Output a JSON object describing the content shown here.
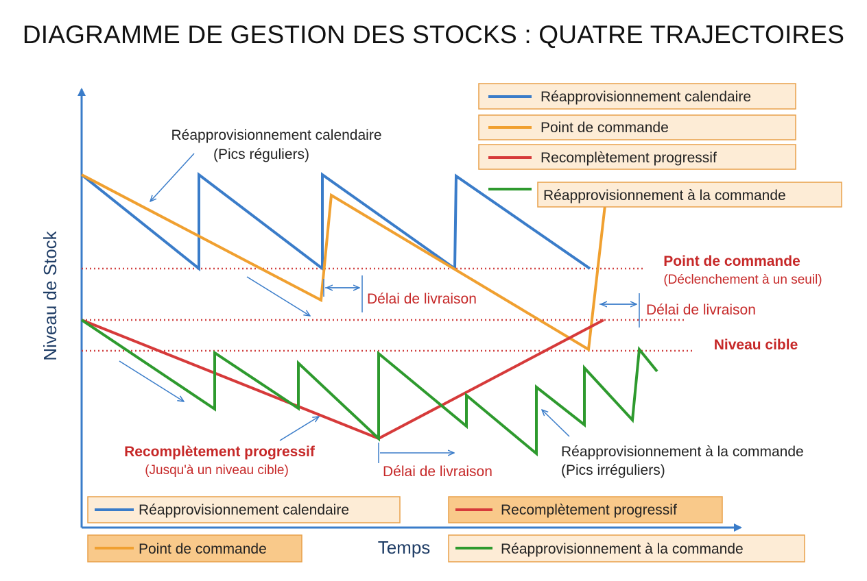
{
  "title": "DIAGRAMME DE GESTION DES STOCKS : QUATRE TRAJECTOIRES",
  "axes": {
    "y_label": "Niveau de Stock",
    "x_label": "Temps"
  },
  "colors": {
    "blue": "#3a7cc9",
    "orange": "#f0a030",
    "red": "#d63a3a",
    "green": "#2e9a2e",
    "axis": "#3a7cc9",
    "dotted": "#d04040",
    "box_light": "#fdecd6",
    "box_dark": "#f9c98a",
    "box_border": "#e8a04a"
  },
  "legend_top": [
    {
      "label": "Réapprovisionnement calendaire",
      "color": "blue"
    },
    {
      "label": "Point de commande",
      "color": "orange"
    },
    {
      "label": "Recomplètement progressif",
      "color": "red"
    },
    {
      "label": "Réapprovisionnement à la commande",
      "color": "green"
    }
  ],
  "legend_bottom": [
    {
      "label": "Réapprovisionnement calendaire",
      "color": "blue"
    },
    {
      "label": "Recomplètement progressif",
      "color": "red"
    },
    {
      "label": "Point de commande",
      "color": "orange"
    },
    {
      "label": "Réapprovisionnement à la commande",
      "color": "green"
    }
  ],
  "annotations": {
    "calendaire_title": "Réapprovisionnement calendaire",
    "calendaire_sub": "(Pics réguliers)",
    "point_title": "Point de commande",
    "point_sub": "(Déclenchement à un seuil)",
    "delai_1": "Délai de livraison",
    "delai_2": "Délai de livraison",
    "delai_3": "Délai de livraison",
    "niveau_cible": "Niveau cible",
    "recompletement_title": "Recomplètement progressif",
    "recompletement_sub": "(Jusqu'à un niveau cible)",
    "commande_title": "Réapprovisionnement à la commande",
    "commande_sub": "(Pics irréguliers)"
  }
}
